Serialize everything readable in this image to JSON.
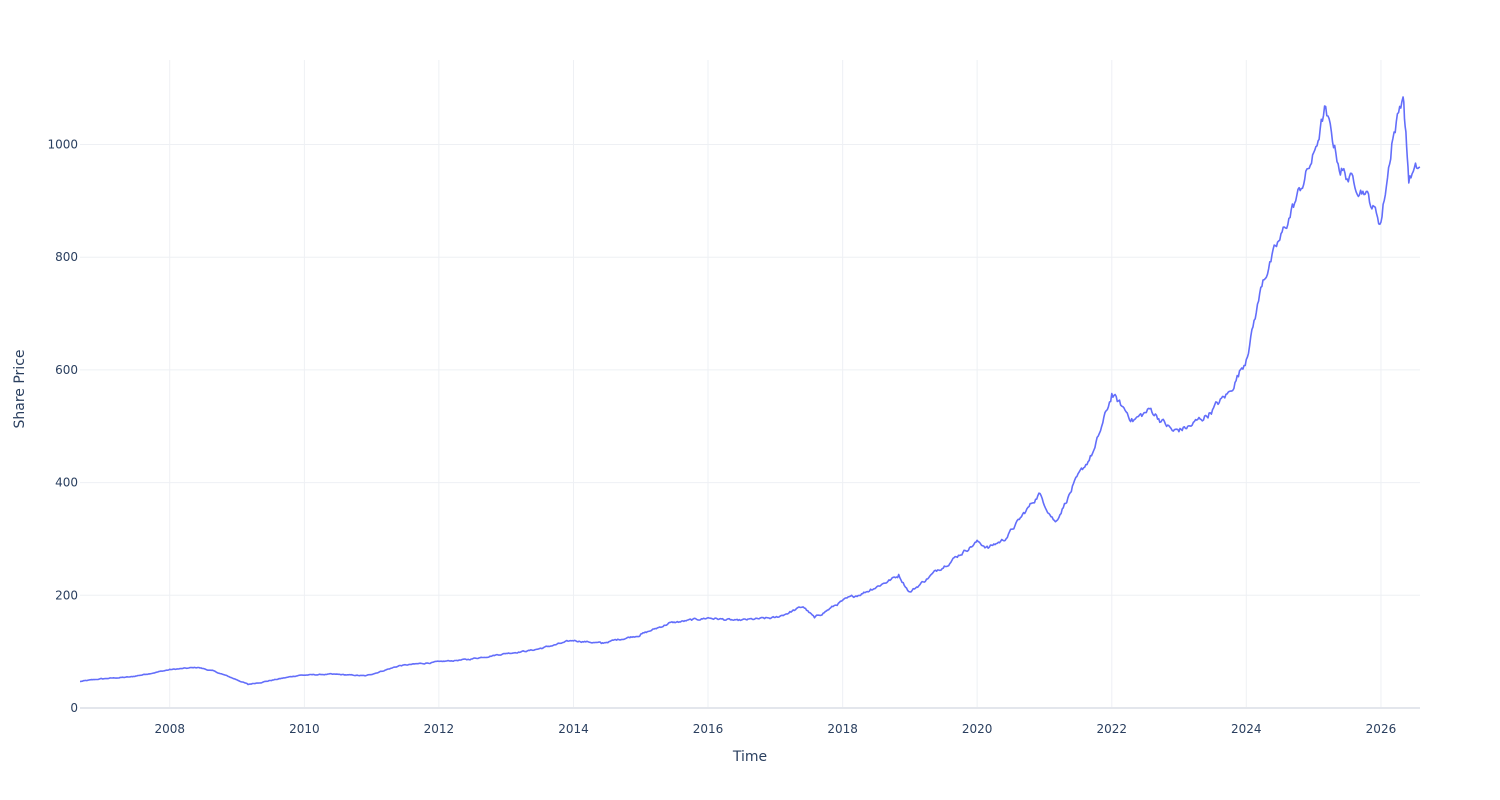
{
  "chart_data": {
    "type": "line",
    "xlabel": "Time",
    "ylabel": "Share Price",
    "x_range": [
      "2006-09-01",
      "2026-08-01"
    ],
    "ylim": [
      0,
      1150
    ],
    "x_tick_labels": [
      "2008",
      "2010",
      "2012",
      "2014",
      "2016",
      "2018",
      "2020",
      "2022",
      "2024",
      "2026"
    ],
    "y_tick_labels": [
      "0",
      "200",
      "400",
      "600",
      "800",
      "1000"
    ],
    "y_tick_values": [
      0,
      200,
      400,
      600,
      800,
      1000
    ],
    "grid": true,
    "legend": "none",
    "line_color": "#636efa",
    "series": [
      {
        "x": [
          "2006-09-01",
          "2007-01-01",
          "2007-06-01",
          "2008-01-01",
          "2008-06-01",
          "2008-09-01",
          "2009-01-01",
          "2009-03-01",
          "2009-06-01",
          "2009-12-01",
          "2010-06-01",
          "2010-12-01",
          "2011-06-01",
          "2012-01-01",
          "2012-06-01",
          "2013-01-01",
          "2013-06-01",
          "2014-01-01",
          "2014-06-01",
          "2015-01-01",
          "2015-06-01",
          "2016-01-01",
          "2016-06-01",
          "2017-01-01",
          "2017-06-01",
          "2017-08-01",
          "2018-01-01",
          "2018-06-01",
          "2018-11-01",
          "2019-01-01",
          "2019-06-01",
          "2020-01-01",
          "2020-03-01",
          "2020-06-01",
          "2020-12-01",
          "2021-03-01",
          "2021-06-01",
          "2021-10-01",
          "2022-01-01",
          "2022-05-01",
          "2022-08-01",
          "2022-12-01",
          "2023-03-01",
          "2023-06-01",
          "2023-10-01",
          "2024-01-01",
          "2024-04-01",
          "2024-07-01",
          "2024-09-01",
          "2025-01-01",
          "2025-03-01",
          "2025-06-01",
          "2025-10-01",
          "2026-01-01",
          "2026-03-01",
          "2026-05-01",
          "2026-06-01",
          "2026-08-01"
        ],
        "y": [
          47,
          52,
          55,
          68,
          72,
          65,
          50,
          42,
          47,
          58,
          60,
          57,
          75,
          82,
          86,
          97,
          103,
          120,
          115,
          130,
          150,
          160,
          155,
          160,
          180,
          160,
          190,
          210,
          235,
          205,
          245,
          295,
          285,
          300,
          380,
          330,
          390,
          460,
          555,
          510,
          530,
          490,
          500,
          520,
          560,
          620,
          760,
          830,
          880,
          980,
          1060,
          950,
          920,
          860,
          1000,
          1090,
          940,
          960
        ]
      }
    ]
  }
}
